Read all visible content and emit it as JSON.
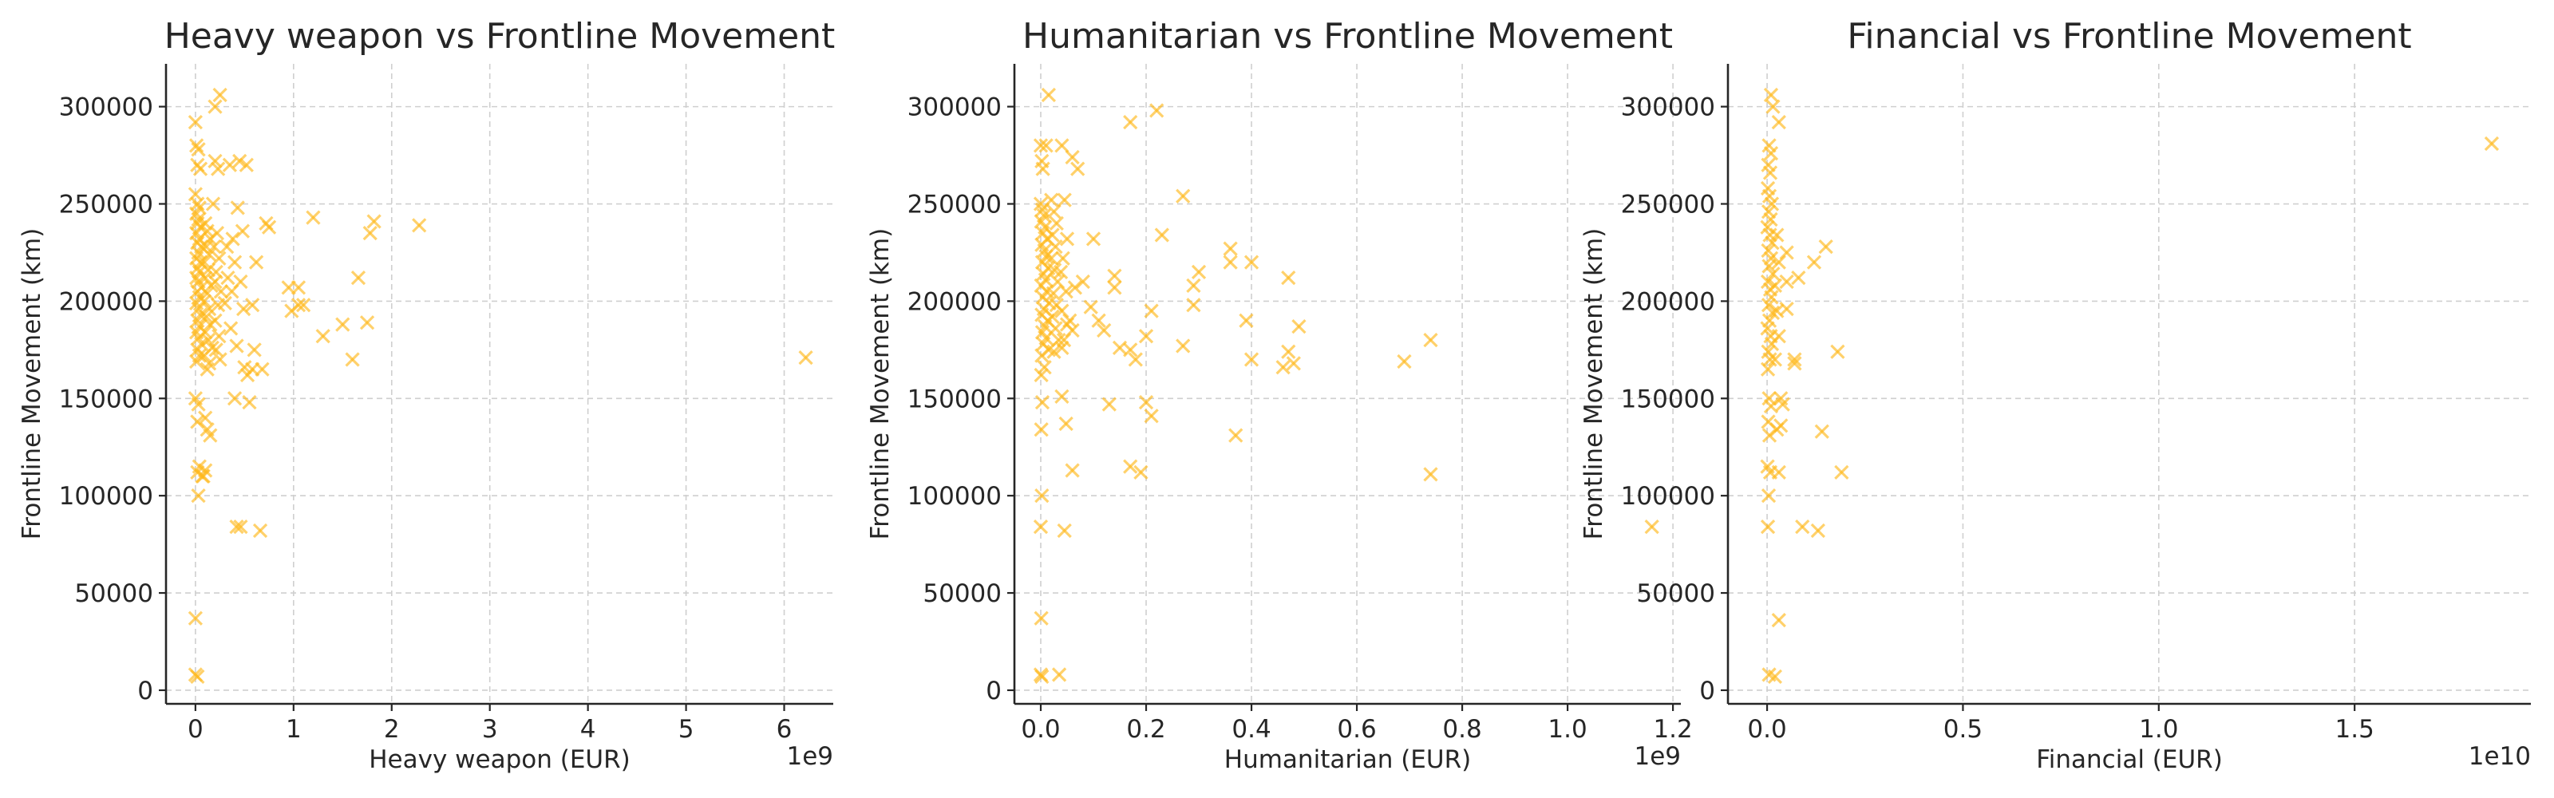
{
  "colors": {
    "marker": "#FFB81C",
    "grid": "#CFCFCF",
    "axis": "#262626"
  },
  "chart_data": [
    {
      "type": "scatter",
      "title": "Heavy weapon vs Frontline Movement",
      "xlabel": "Heavy weapon (EUR)",
      "ylabel": "Frontline Movement (km)",
      "x_offset_label": "1e9",
      "xlim": [
        -0.3,
        6.5
      ],
      "ylim": [
        -7000,
        322000
      ],
      "xticks": [
        0,
        1,
        2,
        3,
        4,
        5,
        6
      ],
      "xtick_labels": [
        "0",
        "1",
        "2",
        "3",
        "4",
        "5",
        "6"
      ],
      "yticks": [
        0,
        50000,
        100000,
        150000,
        200000,
        250000,
        300000
      ],
      "ytick_labels": [
        "0",
        "50000",
        "100000",
        "150000",
        "200000",
        "250000",
        "300000"
      ],
      "grid": true,
      "marker": "x",
      "points": [
        [
          0,
          292000
        ],
        [
          0.01,
          280000
        ],
        [
          0.03,
          278000
        ],
        [
          0.02,
          270000
        ],
        [
          0.05,
          268000
        ],
        [
          0,
          255000
        ],
        [
          0.02,
          250000
        ],
        [
          0.04,
          248000
        ],
        [
          0.01,
          245000
        ],
        [
          0.03,
          242000
        ],
        [
          0.02,
          240000
        ],
        [
          0.05,
          238000
        ],
        [
          0.01,
          235000
        ],
        [
          0.04,
          232000
        ],
        [
          0.02,
          230000
        ],
        [
          0.06,
          228000
        ],
        [
          0.03,
          225000
        ],
        [
          0.01,
          222000
        ],
        [
          0.05,
          220000
        ],
        [
          0.02,
          217000
        ],
        [
          0.04,
          215000
        ],
        [
          0.01,
          212000
        ],
        [
          0.03,
          210000
        ],
        [
          0.06,
          207000
        ],
        [
          0.02,
          205000
        ],
        [
          0.04,
          202000
        ],
        [
          0.01,
          199000
        ],
        [
          0.03,
          196000
        ],
        [
          0.05,
          193000
        ],
        [
          0.02,
          190000
        ],
        [
          0.04,
          187000
        ],
        [
          0.01,
          184000
        ],
        [
          0.03,
          181000
        ],
        [
          0.06,
          178000
        ],
        [
          0.02,
          175000
        ],
        [
          0.04,
          172000
        ],
        [
          0.01,
          169000
        ],
        [
          0,
          150000
        ],
        [
          0.03,
          147000
        ],
        [
          0.02,
          138000
        ],
        [
          0.04,
          115000
        ],
        [
          0.02,
          112000
        ],
        [
          0.07,
          110000
        ],
        [
          0.03,
          100000
        ],
        [
          0,
          37000
        ],
        [
          0,
          8000
        ],
        [
          0.02,
          7000
        ],
        [
          0.1,
          240000
        ],
        [
          0.12,
          236000
        ],
        [
          0.15,
          232000
        ],
        [
          0.11,
          228000
        ],
        [
          0.14,
          224000
        ],
        [
          0.09,
          220000
        ],
        [
          0.13,
          216000
        ],
        [
          0.1,
          212000
        ],
        [
          0.16,
          208000
        ],
        [
          0.12,
          204000
        ],
        [
          0.09,
          200000
        ],
        [
          0.14,
          196000
        ],
        [
          0.11,
          192000
        ],
        [
          0.15,
          188000
        ],
        [
          0.1,
          184000
        ],
        [
          0.13,
          180000
        ],
        [
          0.17,
          176000
        ],
        [
          0.09,
          172000
        ],
        [
          0.14,
          168000
        ],
        [
          0.12,
          165000
        ],
        [
          0.1,
          140000
        ],
        [
          0.12,
          134000
        ],
        [
          0.15,
          131000
        ],
        [
          0.1,
          113000
        ],
        [
          0.08,
          110000
        ],
        [
          0.2,
          300000
        ],
        [
          0.25,
          306000
        ],
        [
          0.2,
          272000
        ],
        [
          0.23,
          268000
        ],
        [
          0.18,
          250000
        ],
        [
          0.22,
          235000
        ],
        [
          0.19,
          228000
        ],
        [
          0.24,
          222000
        ],
        [
          0.21,
          215000
        ],
        [
          0.2,
          210000
        ],
        [
          0.26,
          205000
        ],
        [
          0.23,
          198000
        ],
        [
          0.2,
          190000
        ],
        [
          0.24,
          182000
        ],
        [
          0.21,
          175000
        ],
        [
          0.25,
          170000
        ],
        [
          0.35,
          270000
        ],
        [
          0.45,
          272000
        ],
        [
          0.52,
          270000
        ],
        [
          0.43,
          248000
        ],
        [
          0.48,
          236000
        ],
        [
          0.38,
          232000
        ],
        [
          0.32,
          228000
        ],
        [
          0.4,
          220000
        ],
        [
          0.33,
          212000
        ],
        [
          0.46,
          210000
        ],
        [
          0.37,
          205000
        ],
        [
          0.3,
          199000
        ],
        [
          0.49,
          196000
        ],
        [
          0.36,
          186000
        ],
        [
          0.42,
          177000
        ],
        [
          0.5,
          166000
        ],
        [
          0.53,
          162000
        ],
        [
          0.55,
          148000
        ],
        [
          0.4,
          150000
        ],
        [
          0.42,
          84000
        ],
        [
          0.46,
          84000
        ],
        [
          0.58,
          198000
        ],
        [
          0.62,
          220000
        ],
        [
          0.6,
          175000
        ],
        [
          0.58,
          165000
        ],
        [
          0.68,
          165000
        ],
        [
          0.72,
          240000
        ],
        [
          0.75,
          238000
        ],
        [
          0.66,
          82000
        ],
        [
          0.95,
          207000
        ],
        [
          1.05,
          207000
        ],
        [
          0.98,
          195000
        ],
        [
          1.05,
          198000
        ],
        [
          1.1,
          198000
        ],
        [
          1.2,
          243000
        ],
        [
          1.3,
          182000
        ],
        [
          1.5,
          188000
        ],
        [
          1.6,
          170000
        ],
        [
          1.66,
          212000
        ],
        [
          1.78,
          235000
        ],
        [
          1.82,
          241000
        ],
        [
          1.75,
          189000
        ],
        [
          2.28,
          239000
        ],
        [
          6.22,
          171000
        ]
      ]
    },
    {
      "type": "scatter",
      "title": "Humanitarian vs Frontline Movement",
      "xlabel": "Humanitarian (EUR)",
      "ylabel": "Frontline Movement (km)",
      "x_offset_label": "1e9",
      "xlim": [
        -0.05,
        1.215
      ],
      "ylim": [
        -7000,
        322000
      ],
      "xticks": [
        0,
        0.2,
        0.4,
        0.6,
        0.8,
        1.0,
        1.2
      ],
      "xtick_labels": [
        "0.0",
        "0.2",
        "0.4",
        "0.6",
        "0.8",
        "1.0",
        "1.2"
      ],
      "yticks": [
        0,
        50000,
        100000,
        150000,
        200000,
        250000,
        300000
      ],
      "ytick_labels": [
        "0",
        "50000",
        "100000",
        "150000",
        "200000",
        "250000",
        "300000"
      ],
      "grid": true,
      "marker": "x",
      "points": [
        [
          0.015,
          306000
        ],
        [
          0,
          280000
        ],
        [
          0.002,
          272000
        ],
        [
          0.004,
          268000
        ],
        [
          0.01,
          280000
        ],
        [
          0,
          250000
        ],
        [
          0.003,
          247000
        ],
        [
          0.006,
          244000
        ],
        [
          0.001,
          241000
        ],
        [
          0.008,
          238000
        ],
        [
          0.004,
          235000
        ],
        [
          0.012,
          232000
        ],
        [
          0.002,
          229000
        ],
        [
          0.007,
          226000
        ],
        [
          0.01,
          223000
        ],
        [
          0.003,
          220000
        ],
        [
          0.014,
          217000
        ],
        [
          0.005,
          214000
        ],
        [
          0.009,
          211000
        ],
        [
          0.001,
          208000
        ],
        [
          0.011,
          205000
        ],
        [
          0.004,
          202000
        ],
        [
          0.016,
          199000
        ],
        [
          0.006,
          196000
        ],
        [
          0.002,
          193000
        ],
        [
          0.013,
          190000
        ],
        [
          0.008,
          187000
        ],
        [
          0.003,
          184000
        ],
        [
          0.01,
          181000
        ],
        [
          0.005,
          178000
        ],
        [
          0.015,
          175000
        ],
        [
          0.002,
          172000
        ],
        [
          0.007,
          166000
        ],
        [
          0.001,
          162000
        ],
        [
          0.003,
          148000
        ],
        [
          0.001,
          134000
        ],
        [
          0.002,
          100000
        ],
        [
          0,
          84000
        ],
        [
          0.001,
          37000
        ],
        [
          0,
          8000
        ],
        [
          0.002,
          7000
        ],
        [
          0.035,
          8000
        ],
        [
          0.02,
          252000
        ],
        [
          0.025,
          246000
        ],
        [
          0.03,
          240000
        ],
        [
          0.022,
          234000
        ],
        [
          0.028,
          228000
        ],
        [
          0.02,
          222000
        ],
        [
          0.026,
          216000
        ],
        [
          0.032,
          210000
        ],
        [
          0.024,
          204000
        ],
        [
          0.03,
          198000
        ],
        [
          0.022,
          192000
        ],
        [
          0.028,
          186000
        ],
        [
          0.034,
          180000
        ],
        [
          0.025,
          174000
        ],
        [
          0.04,
          280000
        ],
        [
          0.045,
          252000
        ],
        [
          0.05,
          232000
        ],
        [
          0.042,
          222000
        ],
        [
          0.038,
          215000
        ],
        [
          0.048,
          205000
        ],
        [
          0.04,
          195000
        ],
        [
          0.05,
          188000
        ],
        [
          0.044,
          180000
        ],
        [
          0.04,
          176000
        ],
        [
          0.055,
          190000
        ],
        [
          0.06,
          185000
        ],
        [
          0.04,
          151000
        ],
        [
          0.048,
          137000
        ],
        [
          0.045,
          82000
        ],
        [
          0.06,
          274000
        ],
        [
          0.07,
          268000
        ],
        [
          0.065,
          207000
        ],
        [
          0.08,
          210000
        ],
        [
          0.06,
          113000
        ],
        [
          0.1,
          232000
        ],
        [
          0.095,
          197000
        ],
        [
          0.11,
          190000
        ],
        [
          0.12,
          185000
        ],
        [
          0.13,
          147000
        ],
        [
          0.14,
          213000
        ],
        [
          0.14,
          207000
        ],
        [
          0.15,
          176000
        ],
        [
          0.17,
          175000
        ],
        [
          0.18,
          170000
        ],
        [
          0.17,
          292000
        ],
        [
          0.22,
          298000
        ],
        [
          0.2,
          182000
        ],
        [
          0.21,
          195000
        ],
        [
          0.2,
          148000
        ],
        [
          0.21,
          141000
        ],
        [
          0.17,
          115000
        ],
        [
          0.19,
          112000
        ],
        [
          0.23,
          234000
        ],
        [
          0.27,
          254000
        ],
        [
          0.27,
          177000
        ],
        [
          0.29,
          198000
        ],
        [
          0.29,
          208000
        ],
        [
          0.3,
          215000
        ],
        [
          0.36,
          227000
        ],
        [
          0.36,
          220000
        ],
        [
          0.37,
          131000
        ],
        [
          0.4,
          220000
        ],
        [
          0.39,
          190000
        ],
        [
          0.4,
          170000
        ],
        [
          0.47,
          212000
        ],
        [
          0.46,
          166000
        ],
        [
          0.47,
          174000
        ],
        [
          0.48,
          168000
        ],
        [
          0.49,
          187000
        ],
        [
          0.69,
          169000
        ],
        [
          0.74,
          180000
        ],
        [
          0.74,
          111000
        ],
        [
          1.16,
          84000
        ]
      ]
    },
    {
      "type": "scatter",
      "title": "Financial vs Frontline Movement",
      "xlabel": "Financial (EUR)",
      "ylabel": "Frontline Movement (km)",
      "x_offset_label": "1e10",
      "xlim": [
        -0.1,
        1.95
      ],
      "ylim": [
        -7000,
        322000
      ],
      "xticks": [
        0,
        0.5,
        1.0,
        1.5
      ],
      "xtick_labels": [
        "0.0",
        "0.5",
        "1.0",
        "1.5"
      ],
      "yticks": [
        0,
        50000,
        100000,
        150000,
        200000,
        250000,
        300000
      ],
      "ytick_labels": [
        "0",
        "50000",
        "100000",
        "150000",
        "200000",
        "250000",
        "300000"
      ],
      "grid": true,
      "marker": "x",
      "points": [
        [
          0.01,
          306000
        ],
        [
          0.015,
          300000
        ],
        [
          0.005,
          280000
        ],
        [
          0.01,
          276000
        ],
        [
          0.003,
          270000
        ],
        [
          0.008,
          266000
        ],
        [
          0.002,
          258000
        ],
        [
          0.006,
          254000
        ],
        [
          0.012,
          250000
        ],
        [
          0.004,
          246000
        ],
        [
          0.009,
          242000
        ],
        [
          0.001,
          238000
        ],
        [
          0.007,
          234000
        ],
        [
          0.013,
          230000
        ],
        [
          0.003,
          226000
        ],
        [
          0.01,
          222000
        ],
        [
          0.005,
          218000
        ],
        [
          0.015,
          214000
        ],
        [
          0.002,
          210000
        ],
        [
          0.008,
          206000
        ],
        [
          0.011,
          202000
        ],
        [
          0.004,
          198000
        ],
        [
          0.014,
          194000
        ],
        [
          0.006,
          190000
        ],
        [
          0.001,
          186000
        ],
        [
          0.009,
          182000
        ],
        [
          0.012,
          178000
        ],
        [
          0.003,
          174000
        ],
        [
          0.007,
          170000
        ],
        [
          0.002,
          165000
        ],
        [
          0.005,
          150000
        ],
        [
          0.01,
          146000
        ],
        [
          0.003,
          138000
        ],
        [
          0.006,
          131000
        ],
        [
          0.001,
          115000
        ],
        [
          0.008,
          112000
        ],
        [
          0.004,
          100000
        ],
        [
          0.002,
          84000
        ],
        [
          0.005,
          8000
        ],
        [
          0.02,
          7000
        ],
        [
          0.03,
          292000
        ],
        [
          0.025,
          234000
        ],
        [
          0.03,
          220000
        ],
        [
          0.02,
          208000
        ],
        [
          0.025,
          195000
        ],
        [
          0.03,
          182000
        ],
        [
          0.02,
          170000
        ],
        [
          0.035,
          150000
        ],
        [
          0.025,
          134000
        ],
        [
          0.03,
          112000
        ],
        [
          0.05,
          225000
        ],
        [
          0.05,
          210000
        ],
        [
          0.05,
          196000
        ],
        [
          0.04,
          147000
        ],
        [
          0.035,
          136000
        ],
        [
          0.03,
          36000
        ],
        [
          0.07,
          170000
        ],
        [
          0.08,
          212000
        ],
        [
          0.07,
          168000
        ],
        [
          0.09,
          84000
        ],
        [
          0.12,
          220000
        ],
        [
          0.15,
          228000
        ],
        [
          0.14,
          133000
        ],
        [
          0.13,
          82000
        ],
        [
          0.18,
          174000
        ],
        [
          0.19,
          112000
        ],
        [
          1.85,
          281000
        ]
      ]
    }
  ]
}
